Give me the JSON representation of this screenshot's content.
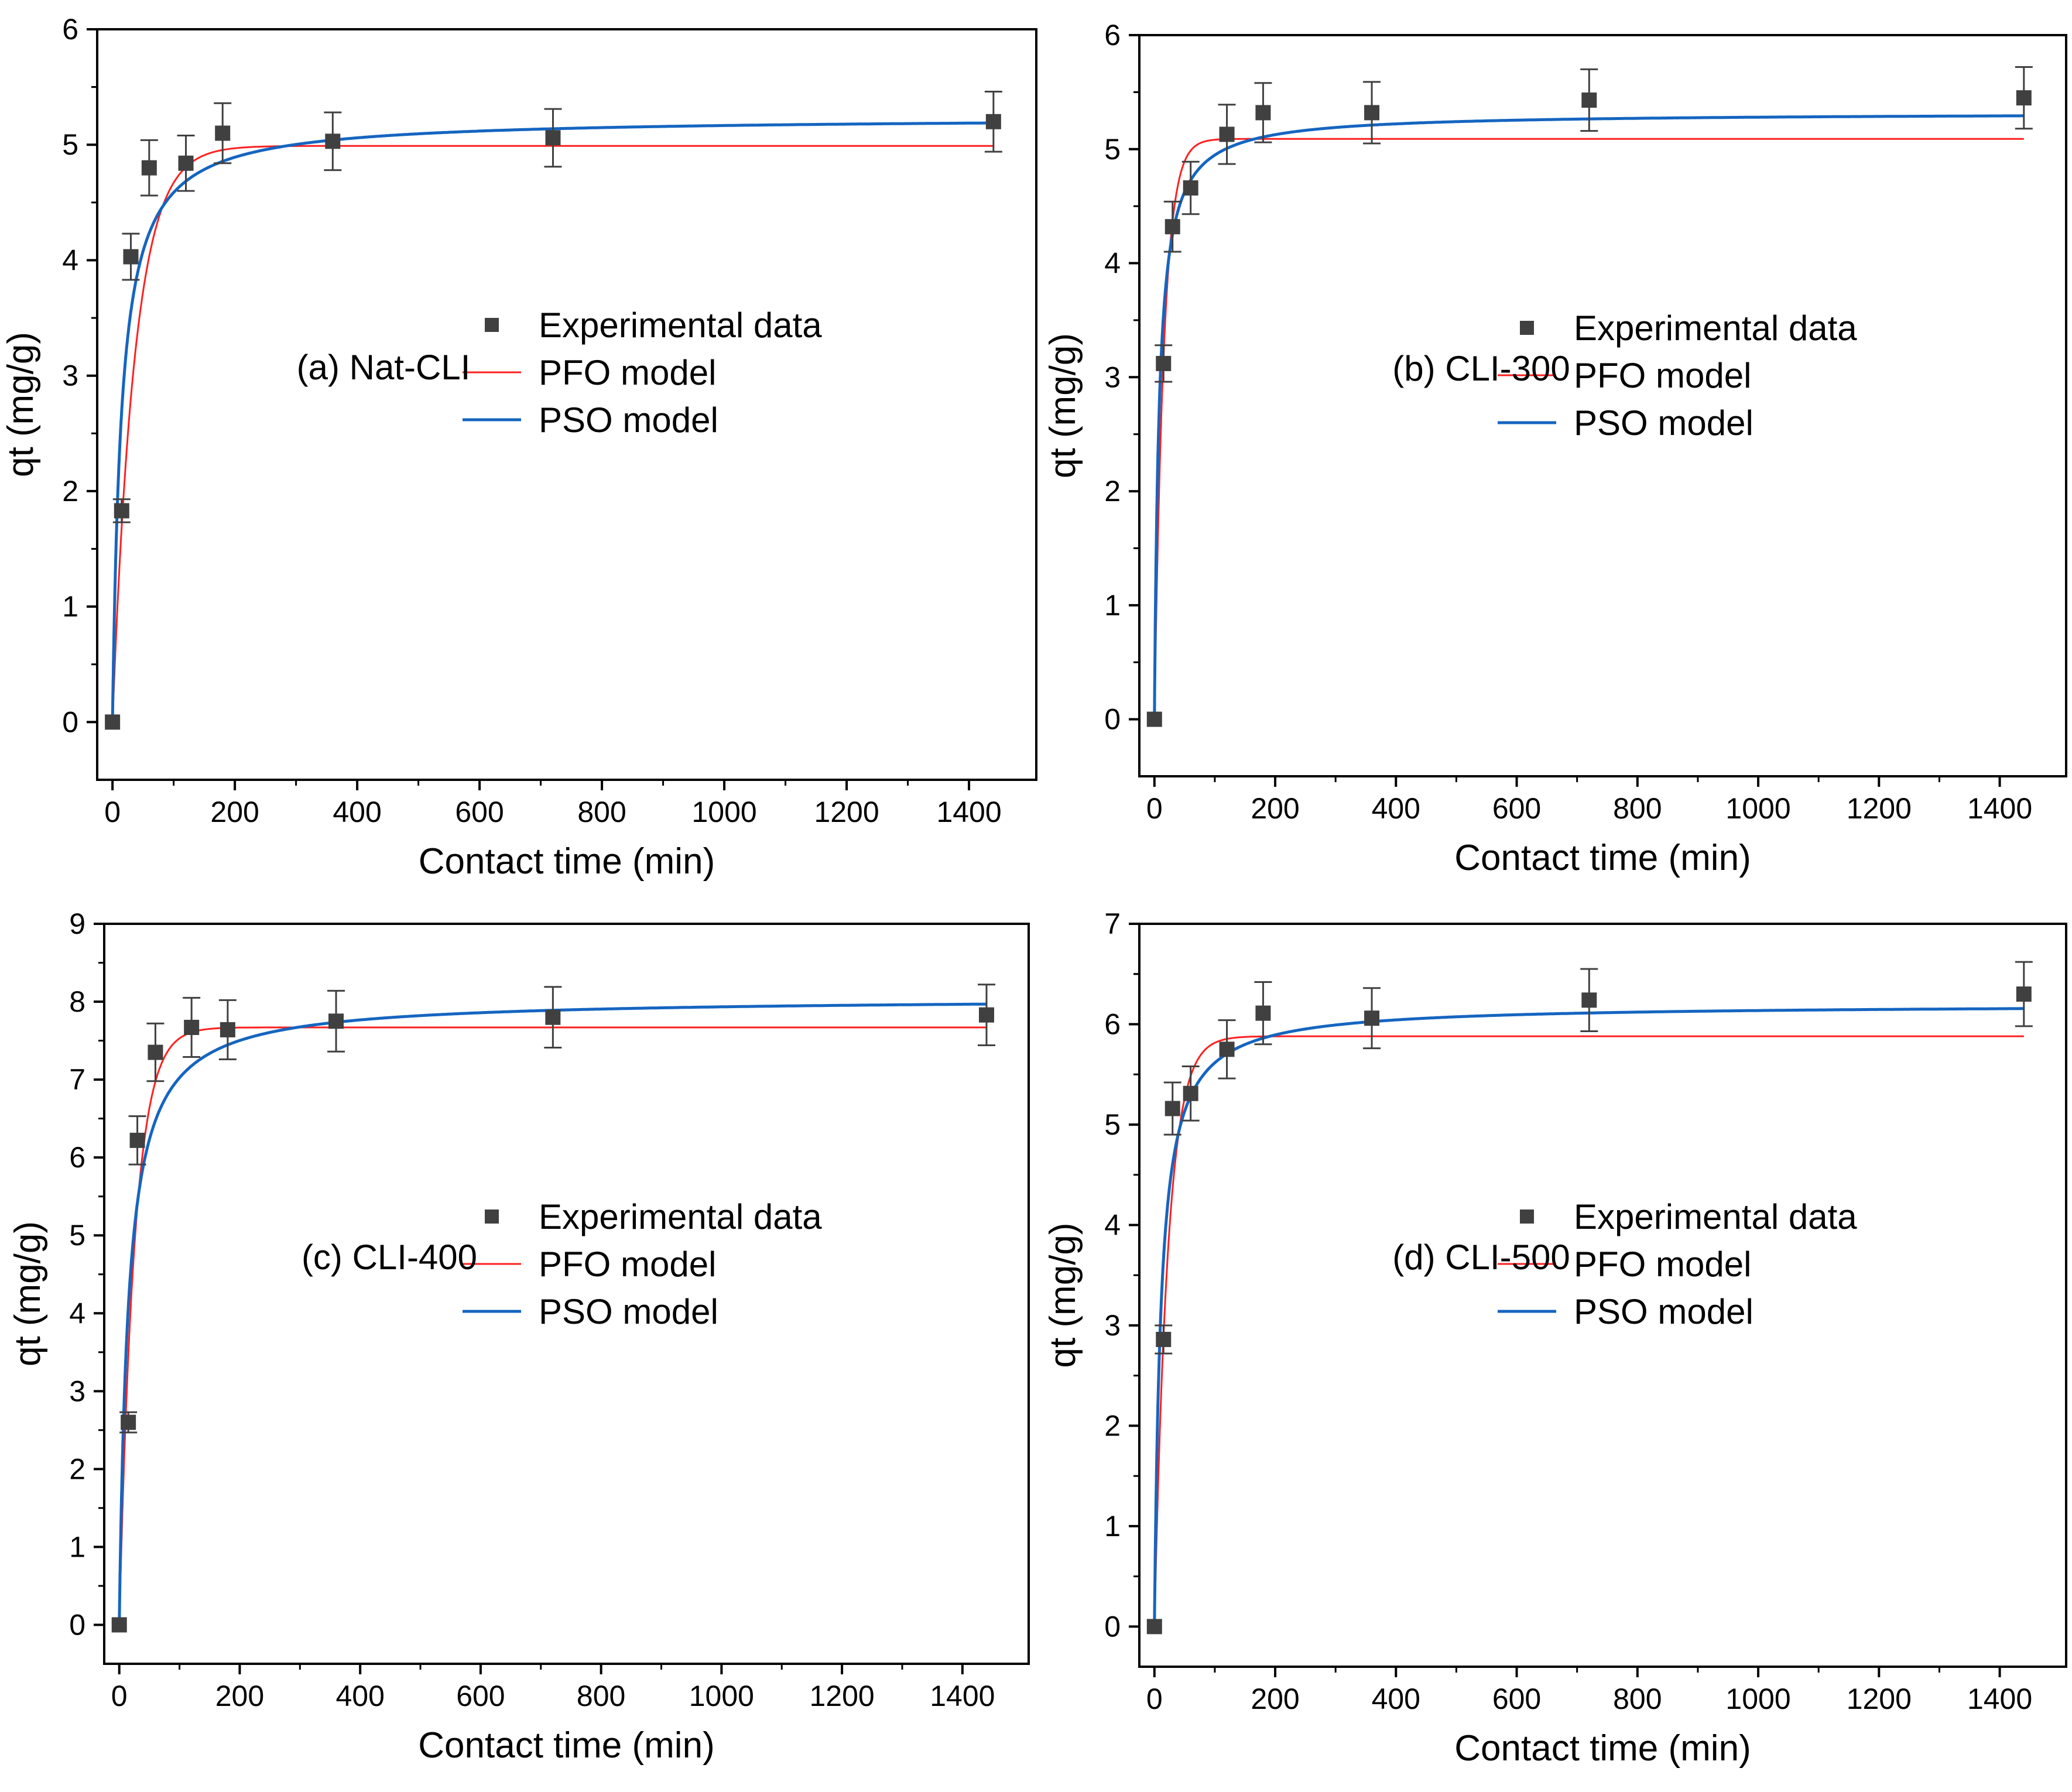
{
  "figure": {
    "colors": {
      "experimental": "#404040",
      "pfo": "#ff1f1f",
      "pso": "#1565c0",
      "axis": "#000000"
    }
  },
  "chart_data": [
    {
      "type": "scatter",
      "annotation": "(a) Nat-CLI",
      "xlabel": "Contact time (min)",
      "ylabel": "qt (mg/g)",
      "xlim": [
        -25,
        1510
      ],
      "ylim": [
        -0.5,
        6
      ],
      "xticks": [
        0,
        200,
        400,
        600,
        800,
        1000,
        1200,
        1400
      ],
      "yticks": [
        0,
        1,
        2,
        3,
        4,
        5,
        6
      ],
      "legend": [
        "Experimental data",
        "PFO model",
        "PSO model"
      ],
      "experimental": {
        "x": [
          0,
          15,
          30,
          60,
          120,
          180,
          360,
          720,
          1440
        ],
        "y": [
          0,
          1.83,
          4.03,
          4.8,
          4.84,
          5.1,
          5.03,
          5.06,
          5.2
        ],
        "err": [
          0,
          0.1,
          0.2,
          0.24,
          0.24,
          0.26,
          0.25,
          0.25,
          0.26
        ]
      },
      "pfo": {
        "qe": 4.99,
        "k1": 0.0275
      },
      "pso": {
        "qe": 5.24,
        "k2": 0.0134
      }
    },
    {
      "type": "scatter",
      "annotation": "(b) CLI-300",
      "xlabel": "Contact time (min)",
      "ylabel": "qt (mg/g)",
      "xlim": [
        -25,
        1510
      ],
      "ylim": [
        -0.5,
        6
      ],
      "xticks": [
        0,
        200,
        400,
        600,
        800,
        1000,
        1200,
        1400
      ],
      "yticks": [
        0,
        1,
        2,
        3,
        4,
        5,
        6
      ],
      "legend": [
        "Experimental data",
        "PFO model",
        "PSO model"
      ],
      "experimental": {
        "x": [
          0,
          15,
          30,
          60,
          120,
          180,
          360,
          720,
          1440
        ],
        "y": [
          0,
          3.12,
          4.32,
          4.66,
          5.13,
          5.32,
          5.32,
          5.43,
          5.45
        ],
        "err": [
          0,
          0.16,
          0.22,
          0.23,
          0.26,
          0.26,
          0.27,
          0.27,
          0.27
        ]
      },
      "pfo": {
        "qe": 5.09,
        "k1": 0.065
      },
      "pso": {
        "qe": 5.32,
        "k2": 0.025
      }
    },
    {
      "type": "scatter",
      "annotation": "(c) CLI-400",
      "xlabel": "Contact time (min)",
      "ylabel": "qt (mg/g)",
      "xlim": [
        -25,
        1510
      ],
      "ylim": [
        -0.5,
        9
      ],
      "xticks": [
        0,
        200,
        400,
        600,
        800,
        1000,
        1200,
        1400
      ],
      "yticks": [
        0,
        1,
        2,
        3,
        4,
        5,
        6,
        7,
        8,
        9
      ],
      "legend": [
        "Experimental data",
        "PFO model",
        "PSO model"
      ],
      "experimental": {
        "x": [
          0,
          15,
          30,
          60,
          120,
          180,
          360,
          720,
          1440
        ],
        "y": [
          0,
          2.6,
          6.22,
          7.35,
          7.67,
          7.64,
          7.75,
          7.8,
          7.83
        ],
        "err": [
          0,
          0.13,
          0.31,
          0.37,
          0.38,
          0.38,
          0.39,
          0.39,
          0.39
        ]
      },
      "pfo": {
        "qe": 7.67,
        "k1": 0.04
      },
      "pso": {
        "qe": 8.05,
        "k2": 0.0085
      }
    },
    {
      "type": "scatter",
      "annotation": "(d) CLI-500",
      "xlabel": "Contact time (min)",
      "ylabel": "qt (mg/g)",
      "xlim": [
        -25,
        1510
      ],
      "ylim": [
        -0.4,
        7
      ],
      "xticks": [
        0,
        200,
        400,
        600,
        800,
        1000,
        1200,
        1400
      ],
      "yticks": [
        0,
        1,
        2,
        3,
        4,
        5,
        6,
        7
      ],
      "legend": [
        "Experimental data",
        "PFO model",
        "PSO model"
      ],
      "experimental": {
        "x": [
          0,
          15,
          30,
          60,
          120,
          180,
          360,
          720,
          1440
        ],
        "y": [
          0,
          2.86,
          5.16,
          5.31,
          5.75,
          6.11,
          6.06,
          6.24,
          6.3
        ],
        "err": [
          0,
          0.14,
          0.26,
          0.27,
          0.29,
          0.31,
          0.3,
          0.31,
          0.32
        ]
      },
      "pfo": {
        "qe": 5.88,
        "k1": 0.045
      },
      "pso": {
        "qe": 6.2,
        "k2": 0.0155
      }
    }
  ]
}
